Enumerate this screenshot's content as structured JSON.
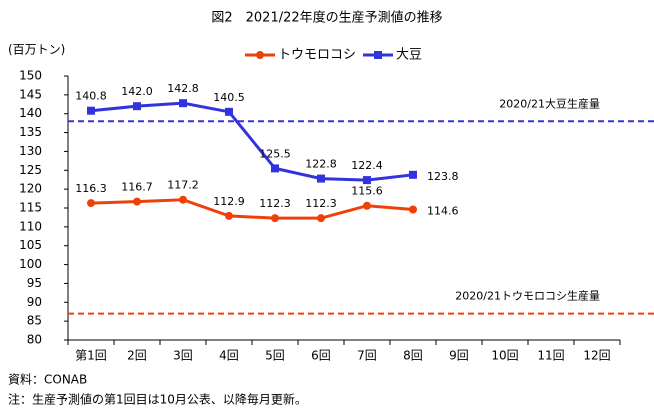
{
  "chart_data": {
    "type": "line",
    "title": "図2　2021/22年度の生産予測値の推移",
    "y_label": "(百万トン)",
    "categories": [
      "第1回",
      "2回",
      "3回",
      "4回",
      "5回",
      "6回",
      "7回",
      "8回",
      "9回",
      "10回",
      "11回",
      "12回"
    ],
    "series": [
      {
        "name": "トウモロコシ",
        "color": "#f0400a",
        "marker": "circle",
        "values": [
          116.3,
          116.7,
          117.2,
          112.9,
          112.3,
          112.3,
          115.6,
          114.6,
          null,
          null,
          null,
          null
        ],
        "value_labels": [
          "116.3",
          "116.7",
          "117.2",
          "112.9",
          "112.3",
          "112.3",
          "115.6",
          "114.6",
          null,
          null,
          null,
          null
        ]
      },
      {
        "name": "大豆",
        "color": "#3333dd",
        "marker": "square",
        "values": [
          140.8,
          142.0,
          142.8,
          140.5,
          125.5,
          122.8,
          122.4,
          123.8,
          null,
          null,
          null,
          null
        ],
        "value_labels": [
          "140.8",
          "142.0",
          "142.8",
          "140.5",
          "125.5",
          "122.8",
          "122.4",
          "123.8",
          null,
          null,
          null,
          null
        ]
      }
    ],
    "reference_lines": [
      {
        "label": "2020/21大豆生産量",
        "value": 138,
        "color": "#3333dd"
      },
      {
        "label": "2020/21トウモロコシ生産量",
        "value": 87,
        "color": "#f0400a"
      }
    ],
    "ylim": [
      80,
      150
    ],
    "yticks": [
      80,
      85,
      90,
      95,
      100,
      105,
      110,
      115,
      120,
      125,
      130,
      135,
      140,
      145,
      150
    ],
    "grid": false,
    "legend": "top",
    "notes": [
      "資料：CONAB",
      "注：生産予測値の第1回目は10月公表、以降毎月更新。"
    ]
  }
}
